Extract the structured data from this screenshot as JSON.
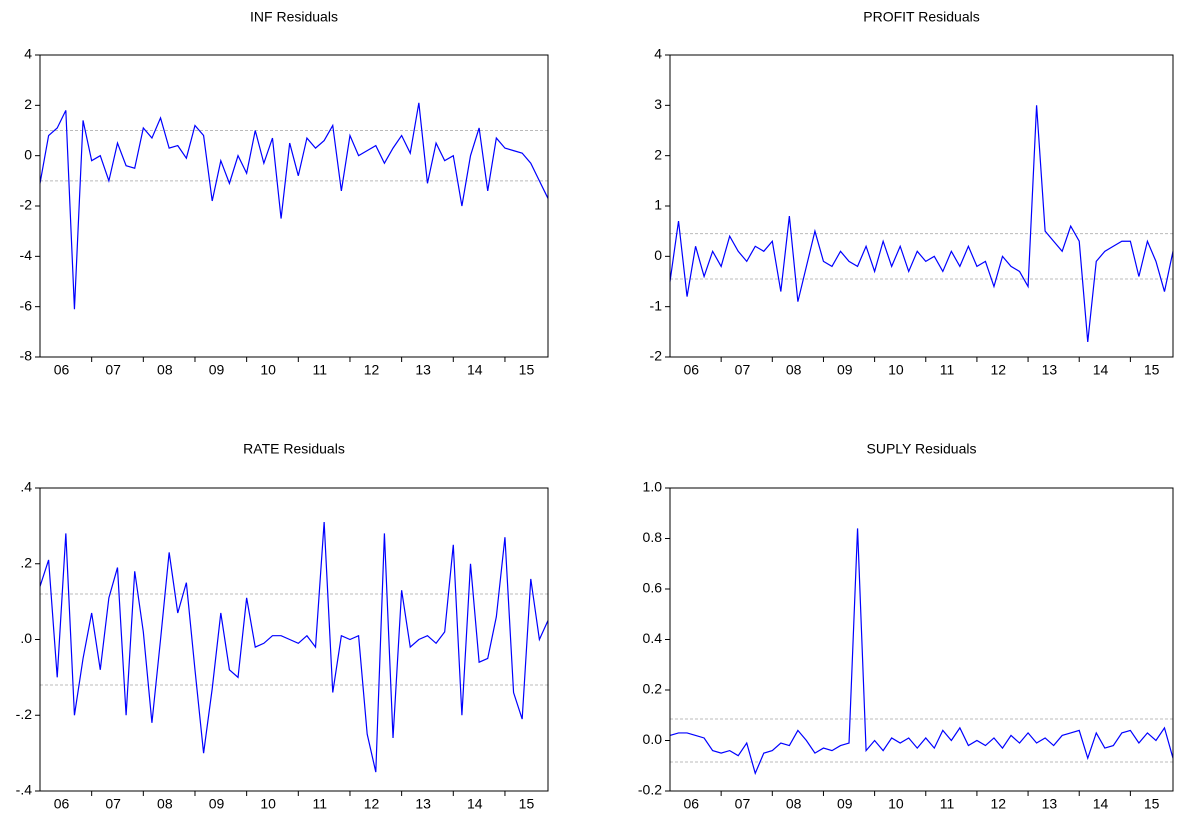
{
  "chart_data": [
    {
      "type": "line",
      "title": "INF Residuals",
      "color": "#0000ff",
      "ylim": [
        -8,
        4
      ],
      "yticks": [
        -8,
        -6,
        -4,
        -2,
        0,
        2,
        4
      ],
      "reference_lines": [
        -1,
        1
      ],
      "categories": [
        null,
        null,
        null,
        "06",
        null,
        null,
        null,
        null,
        null,
        "07",
        null,
        null,
        null,
        null,
        null,
        "08",
        null,
        null,
        null,
        null,
        null,
        "09",
        null,
        null,
        null,
        null,
        null,
        "10",
        null,
        null,
        null,
        null,
        null,
        "11",
        null,
        null,
        null,
        null,
        null,
        "12",
        null,
        null,
        null,
        null,
        null,
        "13",
        null,
        null,
        null,
        null,
        null,
        "14",
        null,
        null,
        null,
        null,
        null,
        "15",
        null,
        null
      ],
      "values": [
        -1.1,
        0.8,
        1.1,
        1.8,
        -6.1,
        1.4,
        -0.2,
        0,
        -1.0,
        0.5,
        -0.4,
        -0.5,
        1.1,
        0.7,
        1.5,
        0.3,
        0.4,
        -0.1,
        1.2,
        0.8,
        -1.8,
        -0.2,
        -1.1,
        0,
        -0.7,
        1.0,
        -0.3,
        0.7,
        -2.5,
        0.5,
        -0.8,
        0.7,
        0.3,
        0.6,
        1.2,
        -1.4,
        0.8,
        0,
        0.2,
        0.4,
        -0.3,
        0.3,
        0.8,
        0.1,
        2.1,
        -1.1,
        0.5,
        -0.2,
        0,
        -2.0,
        0,
        1.1,
        -1.4,
        0.7,
        0.3,
        0.2,
        0.1,
        -0.3,
        -1.0,
        -1.7
      ]
    },
    {
      "type": "line",
      "title": "PROFIT Residuals",
      "color": "#0000ff",
      "ylim": [
        -2,
        4
      ],
      "yticks": [
        -2,
        -1,
        0,
        1,
        2,
        3,
        4
      ],
      "reference_lines": [
        -0.45,
        0.45
      ],
      "categories": [
        null,
        null,
        null,
        "06",
        null,
        null,
        null,
        null,
        null,
        "07",
        null,
        null,
        null,
        null,
        null,
        "08",
        null,
        null,
        null,
        null,
        null,
        "09",
        null,
        null,
        null,
        null,
        null,
        "10",
        null,
        null,
        null,
        null,
        null,
        "11",
        null,
        null,
        null,
        null,
        null,
        "12",
        null,
        null,
        null,
        null,
        null,
        "13",
        null,
        null,
        null,
        null,
        null,
        "14",
        null,
        null,
        null,
        null,
        null,
        "15",
        null,
        null
      ],
      "values": [
        -0.5,
        0.7,
        -0.8,
        0.2,
        -0.4,
        0.1,
        -0.2,
        0.4,
        0.1,
        -0.1,
        0.2,
        0.1,
        0.3,
        -0.7,
        0.8,
        -0.9,
        -0.2,
        0.5,
        -0.1,
        -0.2,
        0.1,
        -0.1,
        -0.2,
        0.2,
        -0.3,
        0.3,
        -0.2,
        0.2,
        -0.3,
        0.1,
        -0.1,
        0,
        -0.3,
        0.1,
        -0.2,
        0.2,
        -0.2,
        -0.1,
        -0.6,
        0,
        -0.2,
        -0.3,
        -0.6,
        3.0,
        0.5,
        0.3,
        0.1,
        0.6,
        0.3,
        -1.7,
        -0.1,
        0.1,
        0.2,
        0.3,
        0.3,
        -0.4,
        0.3,
        -0.1,
        -0.7,
        0.1
      ]
    },
    {
      "type": "line",
      "title": "RATE Residuals",
      "color": "#0000ff",
      "ylim": [
        -0.4,
        0.4
      ],
      "yticks": [
        {
          "value": -0.4,
          "label": "-.4"
        },
        {
          "value": -0.2,
          "label": "-.2"
        },
        {
          "value": 0,
          "label": ".0"
        },
        {
          "value": 0.2,
          "label": ".2"
        },
        {
          "value": 0.4,
          "label": ".4"
        }
      ],
      "reference_lines": [
        -0.12,
        0.12
      ],
      "categories": [
        null,
        null,
        null,
        "06",
        null,
        null,
        null,
        null,
        null,
        "07",
        null,
        null,
        null,
        null,
        null,
        "08",
        null,
        null,
        null,
        null,
        null,
        "09",
        null,
        null,
        null,
        null,
        null,
        "10",
        null,
        null,
        null,
        null,
        null,
        "11",
        null,
        null,
        null,
        null,
        null,
        "12",
        null,
        null,
        null,
        null,
        null,
        "13",
        null,
        null,
        null,
        null,
        null,
        "14",
        null,
        null,
        null,
        null,
        null,
        "15",
        null,
        null
      ],
      "values": [
        0.14,
        0.21,
        -0.1,
        0.28,
        -0.2,
        -0.05,
        0.07,
        -0.08,
        0.11,
        0.19,
        -0.2,
        0.18,
        0.02,
        -0.22,
        0.0,
        0.23,
        0.07,
        0.15,
        -0.08,
        -0.3,
        -0.13,
        0.07,
        -0.08,
        -0.1,
        0.11,
        -0.02,
        -0.01,
        0.01,
        0.01,
        0.0,
        -0.01,
        0.01,
        -0.02,
        0.31,
        -0.14,
        0.01,
        0.0,
        0.01,
        -0.25,
        -0.35,
        0.28,
        -0.26,
        0.13,
        -0.02,
        0.0,
        0.01,
        -0.01,
        0.02,
        0.25,
        -0.2,
        0.2,
        -0.06,
        -0.05,
        0.06,
        0.27,
        -0.14,
        -0.21,
        0.16,
        0.0,
        0.05
      ]
    },
    {
      "type": "line",
      "title": "SUPLY Residuals",
      "color": "#0000ff",
      "ylim": [
        -0.2,
        1.0
      ],
      "yticks": [
        -0.2,
        {
          "value": 0,
          "label": "0.0"
        },
        0.2,
        0.4,
        0.6,
        0.8,
        {
          "value": 1,
          "label": "1.0"
        }
      ],
      "reference_lines": [
        -0.085,
        0.085
      ],
      "categories": [
        null,
        null,
        null,
        "06",
        null,
        null,
        null,
        null,
        null,
        "07",
        null,
        null,
        null,
        null,
        null,
        "08",
        null,
        null,
        null,
        null,
        null,
        "09",
        null,
        null,
        null,
        null,
        null,
        "10",
        null,
        null,
        null,
        null,
        null,
        "11",
        null,
        null,
        null,
        null,
        null,
        "12",
        null,
        null,
        null,
        null,
        null,
        "13",
        null,
        null,
        null,
        null,
        null,
        "14",
        null,
        null,
        null,
        null,
        null,
        "15",
        null,
        null
      ],
      "values": [
        0.02,
        0.03,
        0.03,
        0.02,
        0.01,
        -0.04,
        -0.05,
        -0.04,
        -0.06,
        -0.01,
        -0.13,
        -0.05,
        -0.04,
        -0.01,
        -0.02,
        0.04,
        0.0,
        -0.05,
        -0.03,
        -0.04,
        -0.02,
        -0.01,
        0.84,
        -0.04,
        0.0,
        -0.04,
        0.01,
        -0.01,
        0.01,
        -0.03,
        0.01,
        -0.03,
        0.04,
        0.0,
        0.05,
        -0.02,
        0.0,
        -0.02,
        0.01,
        -0.03,
        0.02,
        -0.01,
        0.03,
        -0.01,
        0.01,
        -0.02,
        0.02,
        0.03,
        0.04,
        -0.07,
        0.03,
        -0.03,
        -0.02,
        0.03,
        0.04,
        -0.01,
        0.03,
        0.0,
        0.05,
        -0.07
      ]
    }
  ]
}
